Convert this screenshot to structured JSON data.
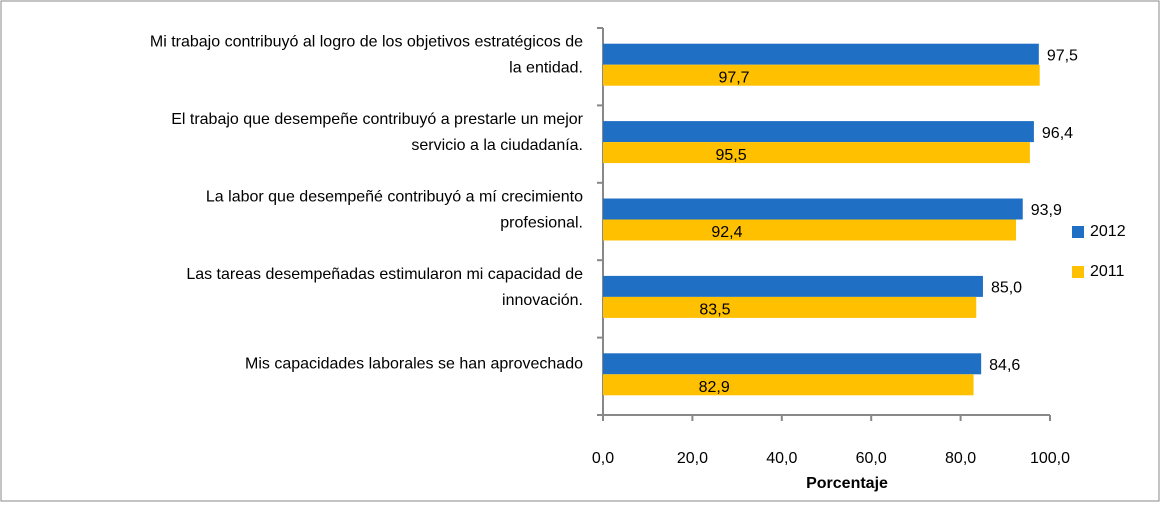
{
  "chart_data": {
    "type": "bar",
    "orientation": "horizontal",
    "categories": [
      "Mi trabajo contribuyó al logro de los objetivos estratégicos de\nla entidad.",
      "El trabajo que desempeñe contribuyó a prestarle un mejor\nservicio a la ciudadanía.",
      "La labor que desempeñé  contribuyó a mí crecimiento\nprofesional.",
      "Las tareas desempeñadas estimularon mi capacidad de\ninnovación.",
      "Mis capacidades laborales se han aprovechado"
    ],
    "series": [
      {
        "name": "2012",
        "color": "#1f6fc5",
        "values": [
          97.5,
          96.4,
          93.9,
          85.0,
          84.6
        ],
        "value_labels": [
          "97,5",
          "96,4",
          "93,9",
          "85,0",
          "84,6"
        ]
      },
      {
        "name": "2011",
        "color": "#ffc000",
        "values": [
          97.7,
          95.5,
          92.4,
          83.5,
          82.9
        ],
        "value_labels": [
          "97,7",
          "95,5",
          "92,4",
          "83,5",
          "82,9"
        ]
      }
    ],
    "xlabel": "Porcentaje",
    "xlim": [
      0,
      100
    ],
    "xticks": [
      {
        "value": 0,
        "label": "0,0"
      },
      {
        "value": 20,
        "label": "20,0"
      },
      {
        "value": 40,
        "label": "40,0"
      },
      {
        "value": 60,
        "label": "60,0"
      },
      {
        "value": 80,
        "label": "80,0"
      },
      {
        "value": 100,
        "label": "100,0"
      }
    ],
    "legend": "right"
  }
}
